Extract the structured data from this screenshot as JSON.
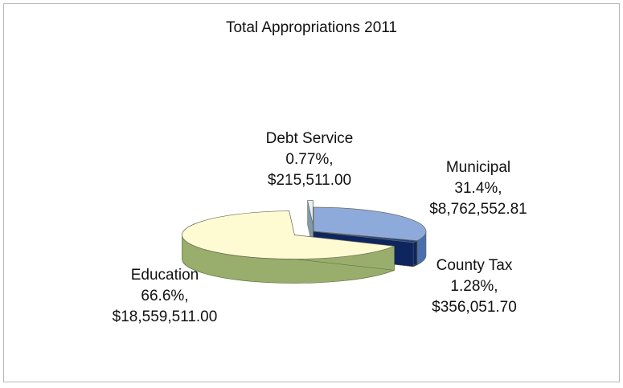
{
  "chart_data": {
    "type": "pie",
    "title": "Total Appropriations 2011",
    "slices": [
      {
        "name": "Municipal",
        "percent": 31.4,
        "percent_label": "31.4%,",
        "amount": "$8,762,552.81",
        "color": "#8eaadb",
        "side_color": "#4a6fb0"
      },
      {
        "name": "County Tax",
        "percent": 1.28,
        "percent_label": "1.28%,",
        "amount": "$356,051.70",
        "color": "#1f3f8a",
        "side_color": "#0f2560"
      },
      {
        "name": "Education",
        "percent": 66.6,
        "percent_label": "66.6%,",
        "amount": "$18,559,511.00",
        "color": "#fefbd3",
        "side_color": "#99ad6c"
      },
      {
        "name": "Debt Service",
        "percent": 0.77,
        "percent_label": "0.77%,",
        "amount": "$215,511.00",
        "color": "#e8f0f6",
        "side_color": "#7f9ab0"
      }
    ]
  }
}
